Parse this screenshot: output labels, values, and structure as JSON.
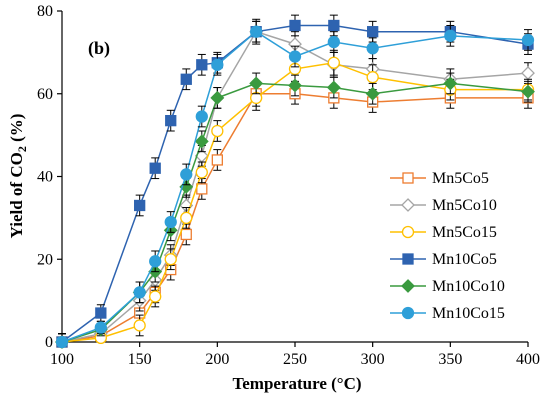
{
  "chart_data": {
    "type": "line",
    "panel_label": "(b)",
    "xlabel": "Temperature (°C)",
    "ylabel_main": "Yield of CO",
    "ylabel_sub": "2",
    "ylabel_unit": " (%)",
    "xlim": [
      100,
      400
    ],
    "ylim": [
      0,
      80
    ],
    "x_ticks": [
      100,
      150,
      200,
      250,
      300,
      350,
      400
    ],
    "y_ticks": [
      0,
      20,
      40,
      60,
      80
    ],
    "grid": false,
    "legend_position": "right",
    "series": [
      {
        "name": "Mn5Co5",
        "color": "#ED7D31",
        "marker": "square-open",
        "points": [
          [
            100,
            0
          ],
          [
            125,
            1.5
          ],
          [
            150,
            7
          ],
          [
            160,
            12
          ],
          [
            170,
            17.5
          ],
          [
            180,
            26
          ],
          [
            190,
            37
          ],
          [
            200,
            44
          ],
          [
            225,
            60
          ],
          [
            250,
            60
          ],
          [
            275,
            59
          ],
          [
            300,
            58
          ],
          [
            350,
            59
          ],
          [
            400,
            59
          ]
        ],
        "errors": [
          2,
          1.5,
          2.5,
          2.5,
          2.5,
          2.5,
          2.5,
          2.5,
          3,
          2.5,
          2.5,
          2.5,
          2.5,
          2.5
        ]
      },
      {
        "name": "Mn5Co10",
        "color": "#A5A5A5",
        "marker": "diamond-open",
        "points": [
          [
            100,
            0
          ],
          [
            125,
            2
          ],
          [
            150,
            10
          ],
          [
            160,
            15
          ],
          [
            170,
            21
          ],
          [
            180,
            33
          ],
          [
            190,
            45
          ],
          [
            200,
            59
          ],
          [
            225,
            75
          ],
          [
            250,
            72
          ],
          [
            275,
            67
          ],
          [
            300,
            66
          ],
          [
            350,
            63.5
          ],
          [
            400,
            65
          ]
        ],
        "errors": [
          2,
          1.5,
          2.5,
          2.5,
          2.5,
          2.5,
          2.5,
          2.5,
          3,
          3,
          3,
          2.5,
          2.5,
          2.5
        ]
      },
      {
        "name": "Mn5Co15",
        "color": "#FFC000",
        "marker": "circle-open",
        "points": [
          [
            100,
            0
          ],
          [
            125,
            1
          ],
          [
            150,
            4
          ],
          [
            160,
            11
          ],
          [
            170,
            20
          ],
          [
            180,
            30
          ],
          [
            190,
            41
          ],
          [
            200,
            51
          ],
          [
            225,
            59
          ],
          [
            250,
            66
          ],
          [
            275,
            67.5
          ],
          [
            300,
            64
          ],
          [
            350,
            61
          ],
          [
            400,
            61
          ]
        ],
        "errors": [
          2,
          1.5,
          2.5,
          2.5,
          2.5,
          2.5,
          2.5,
          2.5,
          3,
          3,
          3,
          3,
          2.5,
          2.5
        ]
      },
      {
        "name": "Mn10Co5",
        "color": "#2E63B0",
        "marker": "square-filled",
        "points": [
          [
            100,
            0
          ],
          [
            125,
            7
          ],
          [
            150,
            33
          ],
          [
            160,
            42
          ],
          [
            170,
            53.5
          ],
          [
            180,
            63.5
          ],
          [
            190,
            67
          ],
          [
            200,
            67.5
          ],
          [
            225,
            75
          ],
          [
            250,
            76.5
          ],
          [
            275,
            76.5
          ],
          [
            300,
            75
          ],
          [
            350,
            75
          ],
          [
            400,
            72
          ]
        ],
        "errors": [
          2,
          2,
          2.5,
          2.5,
          2.5,
          2.5,
          2.5,
          2.5,
          2.5,
          2.5,
          2.5,
          2.5,
          2.5,
          2.5
        ]
      },
      {
        "name": "Mn10Co10",
        "color": "#3A9A3F",
        "marker": "diamond-filled",
        "points": [
          [
            100,
            0
          ],
          [
            125,
            3
          ],
          [
            150,
            12
          ],
          [
            160,
            17
          ],
          [
            170,
            27
          ],
          [
            180,
            37.5
          ],
          [
            190,
            48.5
          ],
          [
            200,
            59
          ],
          [
            225,
            62.5
          ],
          [
            250,
            62
          ],
          [
            275,
            61.5
          ],
          [
            300,
            60
          ],
          [
            350,
            62.5
          ],
          [
            400,
            60.5
          ]
        ],
        "errors": [
          2,
          1.5,
          2.5,
          2.5,
          2.5,
          2.5,
          2.5,
          2.5,
          2.5,
          2.5,
          2.5,
          2.5,
          2.5,
          2.5
        ]
      },
      {
        "name": "Mn10Co15",
        "color": "#2E9FD8",
        "marker": "circle-filled",
        "points": [
          [
            100,
            0
          ],
          [
            125,
            3.5
          ],
          [
            150,
            12
          ],
          [
            160,
            19.5
          ],
          [
            170,
            29
          ],
          [
            180,
            40.5
          ],
          [
            190,
            54.5
          ],
          [
            200,
            67
          ],
          [
            225,
            75
          ],
          [
            250,
            69
          ],
          [
            275,
            72.5
          ],
          [
            300,
            71
          ],
          [
            350,
            74
          ],
          [
            400,
            73
          ]
        ],
        "errors": [
          2,
          1.5,
          2.5,
          2.5,
          2.5,
          2.5,
          2.5,
          2.5,
          2.5,
          2.5,
          2.5,
          2.5,
          2.5,
          2.5
        ]
      }
    ]
  }
}
